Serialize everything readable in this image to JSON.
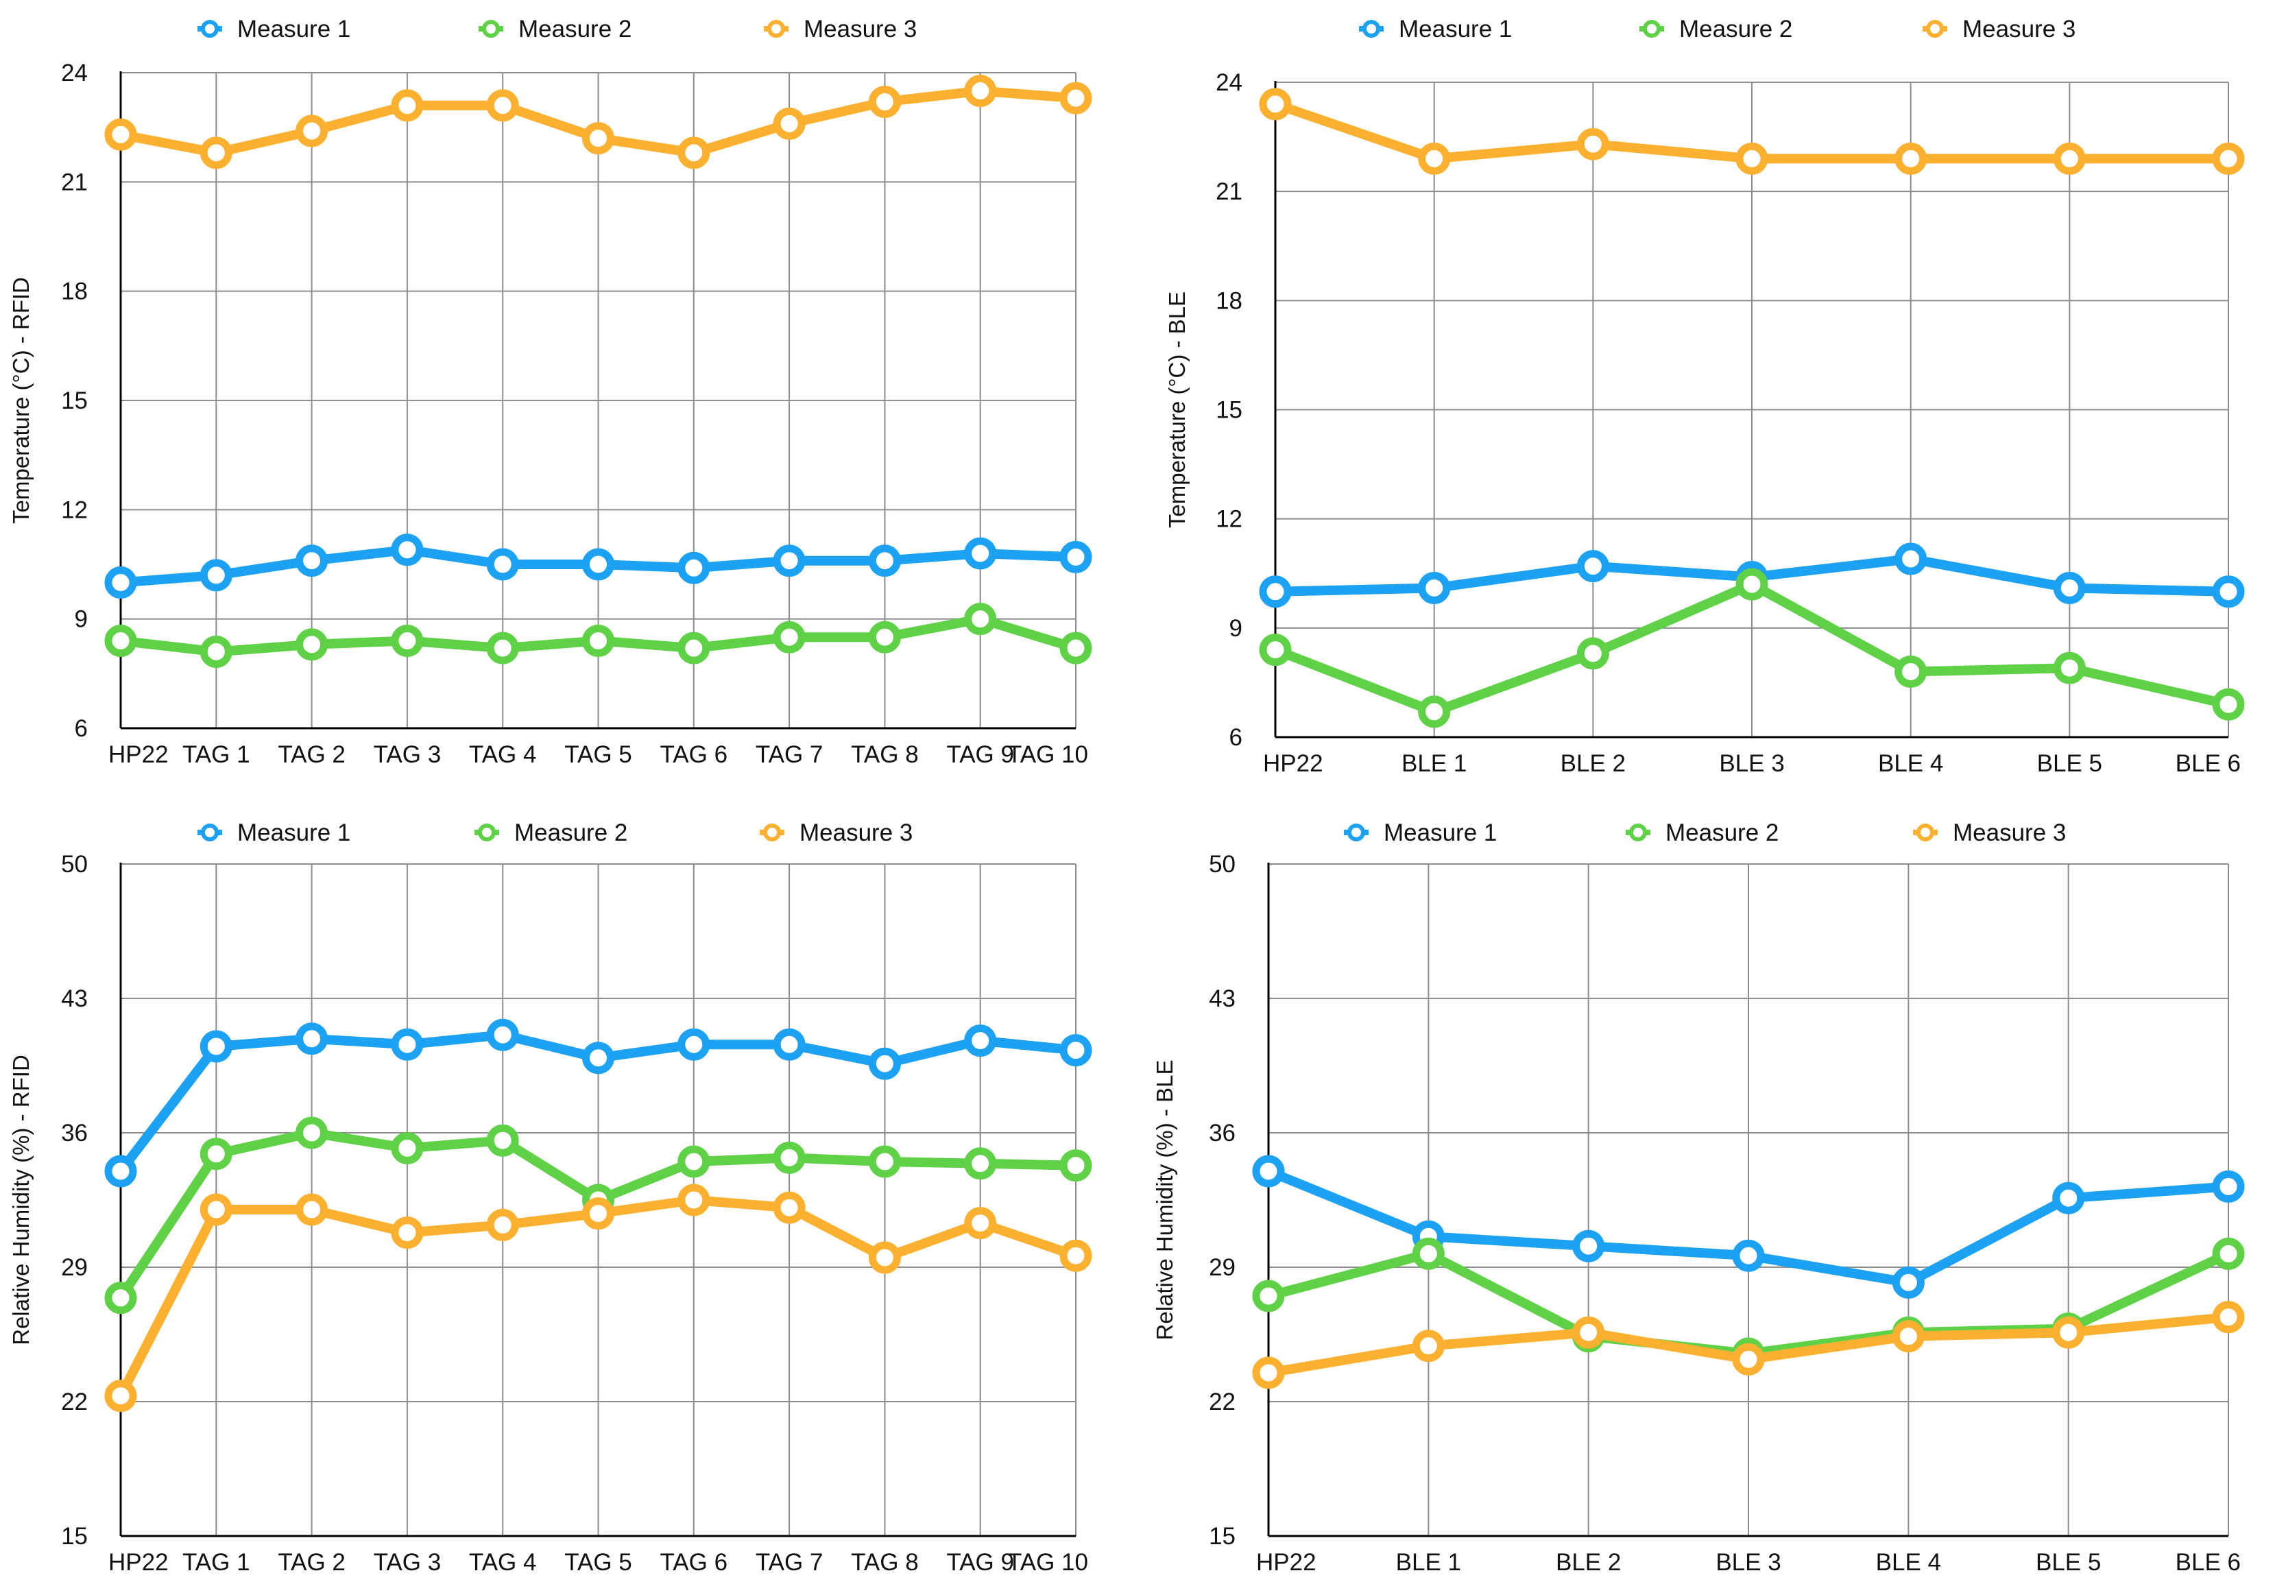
{
  "colors": {
    "measure1": "#1da1f2",
    "measure2": "#5fd147",
    "measure3": "#fbb12f",
    "grid": "#8c8c8c",
    "axis": "#000000"
  },
  "chart_data": [
    {
      "type": "line",
      "ylabel": "Temperature (°C) - RFID",
      "xlabel": "",
      "title": "",
      "categories": [
        "HP22",
        "TAG 1",
        "TAG 2",
        "TAG 3",
        "TAG 4",
        "TAG 5",
        "TAG 6",
        "TAG 7",
        "TAG 8",
        "TAG 9",
        "TAG 10"
      ],
      "ylim": [
        6,
        24
      ],
      "yticks": [
        6,
        9,
        12,
        15,
        18,
        21,
        24
      ],
      "legend_position": "top",
      "series": [
        {
          "name": "Measure 1",
          "color_key": "measure1",
          "values": [
            10.0,
            10.2,
            10.6,
            10.9,
            10.5,
            10.5,
            10.4,
            10.6,
            10.6,
            10.8,
            10.7
          ]
        },
        {
          "name": "Measure  2",
          "color_key": "measure2",
          "values": [
            8.4,
            8.1,
            8.3,
            8.4,
            8.2,
            8.4,
            8.2,
            8.5,
            8.5,
            9.0,
            8.2
          ]
        },
        {
          "name": "Measure 3",
          "color_key": "measure3",
          "values": [
            22.3,
            21.8,
            22.4,
            23.1,
            23.1,
            22.2,
            21.8,
            22.6,
            23.2,
            23.5,
            23.3
          ]
        }
      ]
    },
    {
      "type": "line",
      "ylabel": "Temperature (°C) - BLE",
      "xlabel": "",
      "title": "",
      "categories": [
        "HP22",
        "BLE 1",
        "BLE 2",
        "BLE 3",
        "BLE 4",
        "BLE 5",
        "BLE 6"
      ],
      "ylim": [
        6,
        24
      ],
      "yticks": [
        6,
        9,
        12,
        15,
        18,
        21,
        24
      ],
      "legend_position": "top",
      "series": [
        {
          "name": "Measure 1",
          "color_key": "measure1",
          "values": [
            10.0,
            10.1,
            10.7,
            10.4,
            10.9,
            10.1,
            10.0
          ]
        },
        {
          "name": "Measure 2",
          "color_key": "measure2",
          "values": [
            8.4,
            6.7,
            8.3,
            10.2,
            7.8,
            7.9,
            6.9
          ]
        },
        {
          "name": "Measure 3",
          "color_key": "measure3",
          "values": [
            23.4,
            21.9,
            22.3,
            21.9,
            21.9,
            21.9,
            21.9
          ]
        }
      ]
    },
    {
      "type": "line",
      "ylabel": "Relative Humidity (%) - RFID",
      "xlabel": "",
      "title": "",
      "categories": [
        "HP22",
        "TAG 1",
        "TAG 2",
        "TAG 3",
        "TAG 4",
        "TAG 5",
        "TAG 6",
        "TAG 7",
        "TAG 8",
        "TAG 9",
        "TAG 10"
      ],
      "ylim": [
        15,
        50
      ],
      "yticks": [
        15,
        22,
        29,
        36,
        43,
        50
      ],
      "legend_position": "top",
      "series": [
        {
          "name": "Measure 1",
          "color_key": "measure1",
          "values": [
            34.0,
            40.5,
            40.9,
            40.6,
            41.1,
            39.9,
            40.6,
            40.6,
            39.6,
            40.8,
            40.3
          ]
        },
        {
          "name": "Measure  2",
          "color_key": "measure2",
          "values": [
            27.4,
            34.9,
            36.0,
            35.2,
            35.6,
            32.5,
            34.5,
            34.7,
            34.5,
            34.4,
            34.3
          ]
        },
        {
          "name": "Measure  3",
          "color_key": "measure3",
          "values": [
            22.3,
            32.0,
            32.0,
            30.8,
            31.2,
            31.8,
            32.5,
            32.1,
            29.5,
            31.3,
            29.6
          ]
        }
      ]
    },
    {
      "type": "line",
      "ylabel": "Relative Humidity (%) - BLE",
      "xlabel": "",
      "title": "",
      "categories": [
        "HP22",
        "BLE 1",
        "BLE 2",
        "BLE 3",
        "BLE 4",
        "BLE 5",
        "BLE 6"
      ],
      "ylim": [
        15,
        50
      ],
      "yticks": [
        15,
        22,
        29,
        36,
        43,
        50
      ],
      "legend_position": "top",
      "series": [
        {
          "name": "Measure 1",
          "color_key": "measure1",
          "values": [
            34.0,
            30.6,
            30.1,
            29.6,
            28.2,
            32.6,
            33.2
          ]
        },
        {
          "name": "Measure 2",
          "color_key": "measure2",
          "values": [
            27.5,
            29.7,
            25.4,
            24.5,
            25.6,
            25.8,
            29.7
          ]
        },
        {
          "name": "Measure 3",
          "color_key": "measure3",
          "values": [
            23.5,
            24.9,
            25.6,
            24.2,
            25.4,
            25.6,
            26.4
          ]
        }
      ]
    }
  ]
}
